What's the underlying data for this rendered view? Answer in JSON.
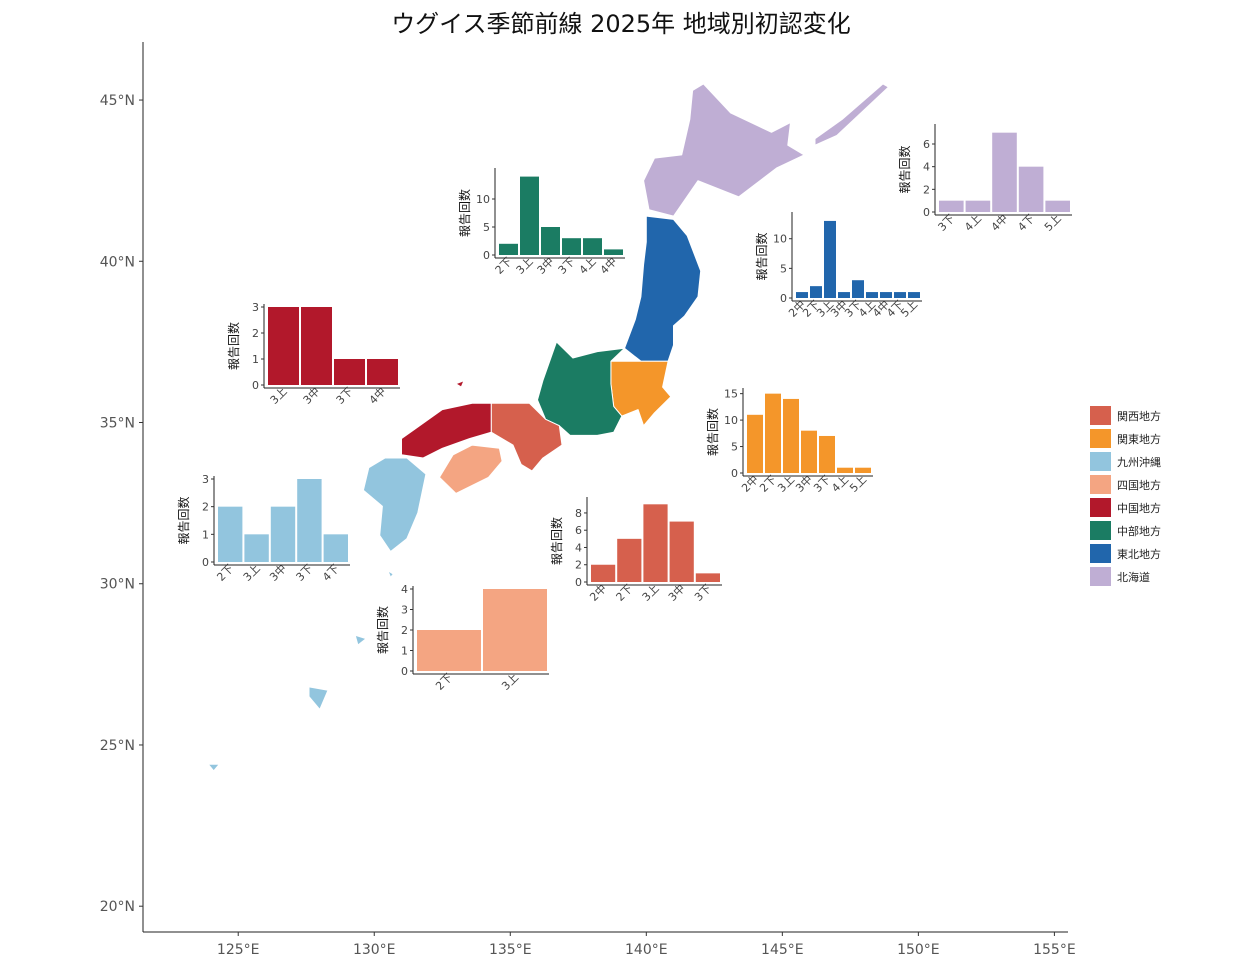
{
  "title": "ウグイス季節前線 2025年 地域別初認変化",
  "chart_data": [
    {
      "type": "map",
      "xlim": [
        121.5,
        155.5
      ],
      "ylim": [
        19.2,
        46.8
      ],
      "x_ticks": [
        125,
        130,
        135,
        140,
        145,
        150,
        155
      ],
      "x_tick_labels": [
        "125°E",
        "130°E",
        "135°E",
        "140°E",
        "145°E",
        "150°E",
        "155°E"
      ],
      "y_ticks": [
        20,
        25,
        30,
        35,
        40,
        45
      ],
      "y_tick_labels": [
        "20°N",
        "25°N",
        "30°N",
        "35°N",
        "40°N",
        "45°N"
      ],
      "legend_position": "right",
      "legend": [
        {
          "name": "関西地方",
          "color": "#d6604d"
        },
        {
          "name": "関東地方",
          "color": "#f4962a"
        },
        {
          "name": "九州沖縄",
          "color": "#92c5de"
        },
        {
          "name": "四国地方",
          "color": "#f4a582"
        },
        {
          "name": "中国地方",
          "color": "#b2182b"
        },
        {
          "name": "中部地方",
          "color": "#1b7c63"
        },
        {
          "name": "東北地方",
          "color": "#2166ac"
        },
        {
          "name": "北海道",
          "color": "#bfaed4"
        }
      ]
    },
    {
      "type": "bar",
      "region": "中部地方",
      "color": "#1b7c63",
      "ylabel": "報告回数",
      "categories": [
        "2下",
        "3上",
        "3中",
        "3下",
        "4上",
        "4中"
      ],
      "values": [
        2,
        14,
        5,
        3,
        3,
        1
      ],
      "ylim": [
        0,
        15
      ],
      "y_ticks": [
        0,
        5,
        10
      ]
    },
    {
      "type": "bar",
      "region": "東北地方",
      "color": "#2166ac",
      "ylabel": "報告回数",
      "categories": [
        "2中",
        "2下",
        "3上",
        "3中",
        "3下",
        "4上",
        "4中",
        "4下",
        "5上"
      ],
      "values": [
        1,
        2,
        13,
        1,
        3,
        1,
        1,
        1,
        1
      ],
      "ylim": [
        0,
        14
      ],
      "y_ticks": [
        0,
        5,
        10
      ]
    },
    {
      "type": "bar",
      "region": "北海道",
      "color": "#bfaed4",
      "ylabel": "報告回数",
      "categories": [
        "3下",
        "4上",
        "4中",
        "4下",
        "5上"
      ],
      "values": [
        1,
        1,
        7,
        4,
        1
      ],
      "ylim": [
        0,
        7.5
      ],
      "y_ticks": [
        0,
        2,
        4,
        6
      ]
    },
    {
      "type": "bar",
      "region": "中国地方",
      "color": "#b2182b",
      "ylabel": "報告回数",
      "categories": [
        "3上",
        "3中",
        "3下",
        "4中"
      ],
      "values": [
        3,
        3,
        1,
        1
      ],
      "ylim": [
        0,
        3
      ],
      "y_ticks": [
        0,
        1,
        2,
        3
      ]
    },
    {
      "type": "bar",
      "region": "関東地方",
      "color": "#f4962a",
      "ylabel": "報告回数",
      "categories": [
        "2中",
        "2下",
        "3上",
        "3中",
        "3下",
        "4上",
        "5上"
      ],
      "values": [
        11,
        15,
        14,
        8,
        7,
        1,
        1
      ],
      "ylim": [
        0,
        15.5
      ],
      "y_ticks": [
        0,
        5,
        10,
        15
      ]
    },
    {
      "type": "bar",
      "region": "九州沖縄",
      "color": "#92c5de",
      "ylabel": "報告回数",
      "categories": [
        "2下",
        "3上",
        "3中",
        "3下",
        "4下"
      ],
      "values": [
        2,
        1,
        2,
        3,
        1
      ],
      "ylim": [
        0,
        3
      ],
      "y_ticks": [
        0,
        1,
        2,
        3
      ]
    },
    {
      "type": "bar",
      "region": "関西地方",
      "color": "#d6604d",
      "ylabel": "報告回数",
      "categories": [
        "2中",
        "2下",
        "3上",
        "3中",
        "3下"
      ],
      "values": [
        2,
        5,
        9,
        7,
        1
      ],
      "ylim": [
        0,
        9.5
      ],
      "y_ticks": [
        0,
        2,
        4,
        6,
        8
      ]
    },
    {
      "type": "bar",
      "region": "四国地方",
      "color": "#f4a582",
      "ylabel": "報告回数",
      "categories": [
        "2下",
        "3上"
      ],
      "values": [
        2,
        4
      ],
      "ylim": [
        0,
        4
      ],
      "y_ticks": [
        0,
        1,
        2,
        3,
        4
      ]
    }
  ]
}
